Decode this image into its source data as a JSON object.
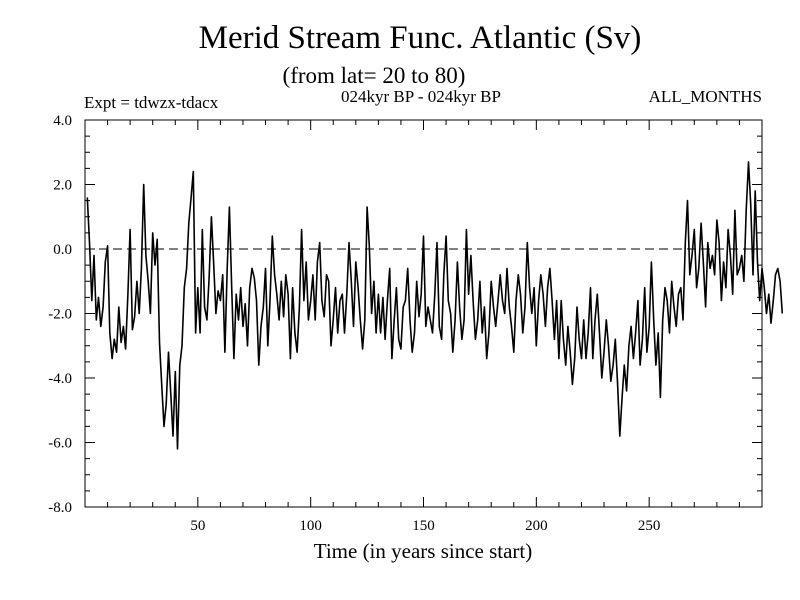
{
  "chart_data": {
    "type": "line",
    "title": "Merid Stream Func. Atlantic (Sv)",
    "subtitle": "(from lat= 20 to 80)",
    "experiment": "Expt = tdwzx-tdacx",
    "period": "024kyr BP - 024kyr BP",
    "months": "ALL_MONTHS",
    "xlabel": "Time (in years since start)",
    "ylabel": "",
    "xlim": [
      0,
      300
    ],
    "ylim": [
      -8,
      4
    ],
    "x_ticks": [
      {
        "value": 50,
        "label": "50"
      },
      {
        "value": 100,
        "label": "100"
      },
      {
        "value": 150,
        "label": "150"
      },
      {
        "value": 200,
        "label": "200"
      },
      {
        "value": 250,
        "label": "250"
      }
    ],
    "y_ticks": [
      {
        "value": 4,
        "label": "4.0"
      },
      {
        "value": 2,
        "label": "2.0"
      },
      {
        "value": 0,
        "label": "0.0"
      },
      {
        "value": -2,
        "label": "-2.0"
      },
      {
        "value": -4,
        "label": "-4.0"
      },
      {
        "value": -6,
        "label": "-6.0"
      },
      {
        "value": -8,
        "label": "-8.0"
      }
    ],
    "zero_line": "dashed",
    "line_color": "#000000",
    "series": [
      {
        "x_start": 1,
        "x_step": 1,
        "values": [
          1.6,
          0.2,
          -1.6,
          -0.2,
          -2.2,
          -1.5,
          -2.4,
          -1.8,
          -0.4,
          0.1,
          -2.6,
          -3.4,
          -2.8,
          -3.2,
          -1.8,
          -2.9,
          -2.4,
          -3.1,
          -1.4,
          0.6,
          -2.5,
          -2.1,
          -1.0,
          -2.0,
          -0.6,
          2.0,
          -0.2,
          -1.0,
          -2.0,
          0.5,
          -0.5,
          0.3,
          -2.9,
          -4.2,
          -5.5,
          -4.8,
          -3.2,
          -4.5,
          -5.8,
          -3.8,
          -6.2,
          -3.6,
          -3.0,
          -1.2,
          -0.6,
          0.8,
          1.6,
          2.4,
          -2.6,
          -1.2,
          -2.6,
          0.6,
          -1.8,
          -2.2,
          -0.9,
          1.0,
          -0.4,
          -2.0,
          -1.3,
          -1.6,
          -0.8,
          -3.2,
          -0.6,
          1.3,
          -1.2,
          -3.4,
          -1.4,
          -2.2,
          -1.2,
          -2.4,
          -1.7,
          -3.0,
          -1.2,
          -0.6,
          -0.9,
          -1.6,
          -3.6,
          -2.4,
          -1.8,
          -0.6,
          -3.0,
          -1.6,
          0.4,
          -0.8,
          -1.4,
          -2.2,
          -1.0,
          -2.1,
          -0.8,
          -1.4,
          -3.4,
          -1.2,
          -2.6,
          -3.2,
          -1.8,
          0.6,
          -1.6,
          -0.4,
          -2.2,
          -1.6,
          -0.8,
          -2.2,
          -0.4,
          0.2,
          -1.6,
          -2.1,
          -0.8,
          -1.0,
          -3.0,
          -2.2,
          -1.2,
          -2.6,
          -1.6,
          -1.4,
          -2.6,
          -1.4,
          0.2,
          -1.0,
          -2.4,
          -0.4,
          -1.2,
          -2.2,
          -3.1,
          -2.2,
          1.3,
          0.1,
          -2.0,
          -1.0,
          -2.6,
          -1.4,
          -2.6,
          -1.5,
          -2.8,
          -1.6,
          -0.6,
          -3.4,
          -2.2,
          -1.2,
          -2.8,
          -3.1,
          -1.8,
          -1.6,
          -0.6,
          -2.2,
          -3.2,
          -2.6,
          -1.0,
          -2.1,
          -1.4,
          0.4,
          -2.4,
          -1.8,
          -2.2,
          -2.6,
          -1.4,
          0.2,
          -2.4,
          -2.8,
          -0.8,
          0.4,
          -1.6,
          -2.0,
          -3.2,
          -2.2,
          -0.4,
          -1.8,
          -2.8,
          -2.2,
          0.6,
          -1.4,
          -0.2,
          -1.6,
          -2.8,
          -2.2,
          -1.0,
          -2.6,
          -1.8,
          -3.4,
          -2.6,
          -1.0,
          -1.8,
          -2.4,
          -1.6,
          -0.8,
          -1.6,
          -2.0,
          -0.6,
          -1.8,
          -2.4,
          -3.2,
          -1.6,
          -0.8,
          -1.4,
          -2.6,
          -1.8,
          0.2,
          -1.2,
          -2.0,
          -1.2,
          -3.0,
          -1.6,
          -0.8,
          -1.4,
          -2.4,
          -1.2,
          -0.6,
          -1.6,
          -2.8,
          -1.6,
          -3.4,
          -1.6,
          -2.8,
          -3.6,
          -2.4,
          -3.2,
          -4.2,
          -3.4,
          -1.8,
          -2.8,
          -3.4,
          -2.2,
          -3.4,
          -2.6,
          -1.2,
          -3.4,
          -2.2,
          -1.4,
          -2.6,
          -4.0,
          -3.2,
          -2.2,
          -3.0,
          -4.1,
          -3.6,
          -2.8,
          -4.2,
          -5.8,
          -4.6,
          -3.6,
          -4.4,
          -3.0,
          -2.4,
          -3.4,
          -2.6,
          -1.6,
          -3.6,
          -2.8,
          -1.2,
          -3.2,
          -2.4,
          -0.4,
          -2.2,
          -3.6,
          -2.6,
          -4.6,
          -2.2,
          -1.2,
          -1.6,
          -2.6,
          -1.0,
          -1.8,
          -2.4,
          -1.4,
          -1.2,
          -2.2,
          0.2,
          1.5,
          -0.8,
          -0.2,
          0.6,
          -1.2,
          -0.6,
          0.8,
          -0.4,
          -1.8,
          0.2,
          -0.6,
          -0.2,
          -0.8,
          0.9,
          0.2,
          -1.6,
          -0.4,
          -1.2,
          0.6,
          -0.2,
          -1.4,
          1.2,
          -0.8,
          -0.6,
          -0.2,
          -1.0,
          1.2,
          2.7,
          1.4,
          -0.8,
          1.8,
          -0.4,
          -1.6,
          -0.6,
          -1.2,
          -2.0,
          -1.4,
          -2.3,
          -1.6,
          -0.8,
          -0.6,
          -1.0,
          -2.0
        ]
      }
    ]
  }
}
